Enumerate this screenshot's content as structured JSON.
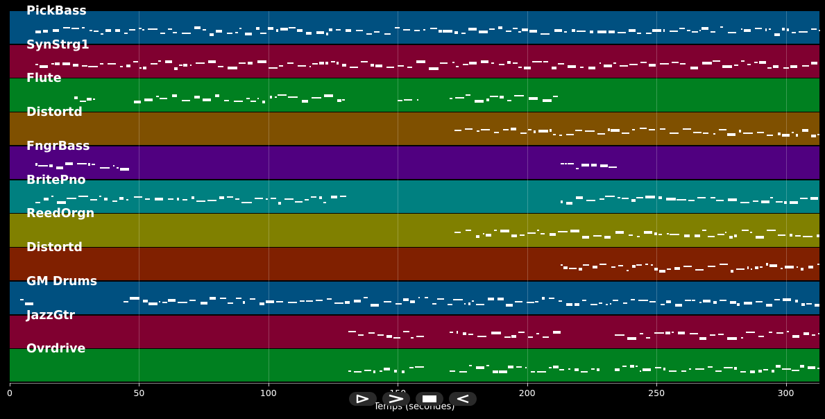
{
  "colors": {
    "note": "#ffffff",
    "gridline": "#ffffff33",
    "background": "#000000"
  },
  "tracks": [
    {
      "name": "PickBass",
      "color": "#005080"
    },
    {
      "name": "SynStrg1",
      "color": "#800030"
    },
    {
      "name": "Flute",
      "color": "#008020"
    },
    {
      "name": "Distortd",
      "color": "#7f5000"
    },
    {
      "name": "FngrBass",
      "color": "#500080"
    },
    {
      "name": "BritePno",
      "color": "#008080"
    },
    {
      "name": "ReedOrgn",
      "color": "#808000"
    },
    {
      "name": "Distortd",
      "color": "#802000"
    },
    {
      "name": "GM Drums",
      "color": "#005080"
    },
    {
      "name": "JazzGtr",
      "color": "#800030"
    },
    {
      "name": "Ovrdrive",
      "color": "#008020"
    }
  ],
  "axis": {
    "title": "Temps (secondes)",
    "range": [
      0,
      313
    ],
    "ticks": [
      {
        "value": 0,
        "label": "0"
      },
      {
        "value": 50,
        "label": "50"
      },
      {
        "value": 100,
        "label": "100"
      },
      {
        "value": 150,
        "label": "150"
      },
      {
        "value": 200,
        "label": "200"
      },
      {
        "value": 250,
        "label": "250"
      },
      {
        "value": 300,
        "label": "300"
      }
    ]
  },
  "controls": [
    {
      "name": "play-button",
      "icon": "play-outline-icon"
    },
    {
      "name": "forward-button",
      "icon": "chevron-right-icon"
    },
    {
      "name": "stop-button",
      "icon": "stop-icon"
    },
    {
      "name": "rewind-button",
      "icon": "rewind-outline-icon"
    }
  ],
  "note_activity": [
    [
      [
        10,
        46
      ],
      [
        46,
        313
      ]
    ],
    [
      [
        10,
        313
      ]
    ],
    [
      [
        25,
        33
      ],
      [
        48,
        130
      ],
      [
        150,
        158
      ],
      [
        170,
        212
      ]
    ],
    [
      [
        172,
        313
      ]
    ],
    [
      [
        10,
        46
      ],
      [
        213,
        235
      ]
    ],
    [
      [
        10,
        46
      ],
      [
        48,
        130
      ],
      [
        213,
        313
      ]
    ],
    [
      [
        172,
        313
      ]
    ],
    [
      [
        213,
        313
      ]
    ],
    [
      [
        4,
        9
      ],
      [
        44,
        313
      ]
    ],
    [
      [
        131,
        160
      ],
      [
        170,
        213
      ],
      [
        234,
        313
      ]
    ],
    [
      [
        131,
        160
      ],
      [
        170,
        228
      ],
      [
        234,
        313
      ]
    ]
  ]
}
